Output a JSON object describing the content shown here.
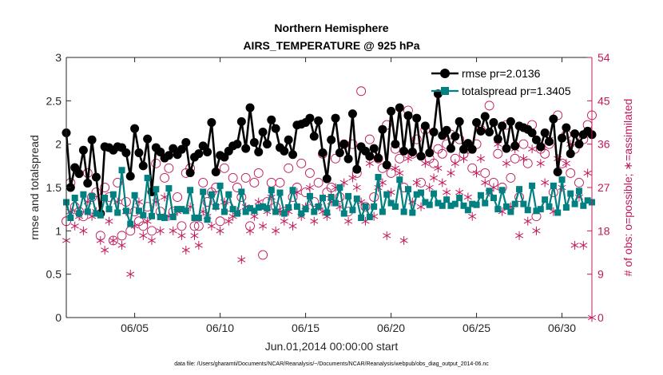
{
  "chart_data": {
    "type": "line",
    "title": "Northern Hemisphere",
    "subtitle": "AIRS_TEMPERATURE @ 925 hPa",
    "xlabel": "Jun.01,2014 00:00:00 start",
    "ylabel_left": "rmse and totalspread",
    "ylabel_right": "# of obs: o=possible; ∗=assimilated",
    "xlim": [
      0,
      30.75
    ],
    "ylim_left": [
      0,
      3
    ],
    "ylim_right": [
      0,
      54
    ],
    "xticks": [
      {
        "v": 4,
        "label": "06/05"
      },
      {
        "v": 9,
        "label": "06/10"
      },
      {
        "v": 14,
        "label": "06/15"
      },
      {
        "v": 19,
        "label": "06/20"
      },
      {
        "v": 24,
        "label": "06/25"
      },
      {
        "v": 29,
        "label": "06/30"
      }
    ],
    "yticks_left": [
      "0",
      "0.5",
      "1",
      "1.5",
      "2",
      "2.5",
      "3"
    ],
    "yticks_right": [
      "0",
      "9",
      "18",
      "27",
      "36",
      "45",
      "54"
    ],
    "grid": false,
    "legend_position": "top-right",
    "footer": "data file: /Users/gharamti/Documents/NCAR/Reanalysis/~/Documents/NCAR/Reanalysis/webpub/obs_diag_output_2014-06.nc",
    "colors": {
      "rmse": "#000000",
      "spread": "#008080",
      "obs": "#c2185b",
      "axis": "#262626"
    },
    "series": [
      {
        "name": "rmse pr=2.0136",
        "axis": "left",
        "x": [
          0.0,
          0.25,
          0.5,
          0.75,
          1.0,
          1.25,
          1.5,
          1.75,
          2.0,
          2.25,
          2.5,
          2.75,
          3.0,
          3.25,
          3.5,
          3.75,
          4.0,
          4.25,
          4.5,
          4.75,
          5.0,
          5.25,
          5.5,
          5.75,
          6.0,
          6.25,
          6.5,
          6.75,
          7.0,
          7.25,
          7.5,
          7.75,
          8.0,
          8.25,
          8.5,
          8.75,
          9.0,
          9.25,
          9.5,
          9.75,
          10.0,
          10.25,
          10.5,
          10.75,
          11.0,
          11.25,
          11.5,
          11.75,
          12.0,
          12.25,
          12.5,
          12.75,
          13.0,
          13.25,
          13.5,
          13.75,
          14.0,
          14.25,
          14.5,
          14.75,
          15.0,
          15.25,
          15.5,
          15.75,
          16.0,
          16.25,
          16.5,
          16.75,
          17.0,
          17.25,
          17.5,
          17.75,
          18.0,
          18.25,
          18.5,
          18.75,
          19.0,
          19.25,
          19.5,
          19.75,
          20.0,
          20.25,
          20.5,
          20.75,
          21.0,
          21.25,
          21.5,
          21.75,
          22.0,
          22.25,
          22.5,
          22.75,
          23.0,
          23.25,
          23.5,
          23.75,
          24.0,
          24.25,
          24.5,
          24.75,
          25.0,
          25.25,
          25.5,
          25.75,
          26.0,
          26.25,
          26.5,
          26.75,
          27.0,
          27.25,
          27.5,
          27.75,
          28.0,
          28.25,
          28.5,
          28.75,
          29.0,
          29.25,
          29.5,
          29.75,
          30.0,
          30.25,
          30.5,
          30.75
        ],
        "values": [
          2.13,
          1.5,
          1.73,
          1.66,
          1.93,
          1.55,
          2.05,
          1.62,
          1.2,
          1.97,
          1.96,
          1.93,
          1.97,
          1.96,
          1.9,
          1.63,
          2.18,
          1.9,
          1.75,
          2.06,
          1.45,
          1.96,
          1.91,
          1.84,
          1.87,
          1.95,
          1.88,
          1.94,
          2.02,
          1.67,
          1.85,
          1.89,
          1.98,
          1.91,
          2.25,
          1.68,
          1.87,
          1.85,
          1.92,
          1.98,
          2.0,
          2.26,
          1.95,
          2.42,
          2.02,
          1.91,
          2.14,
          2.0,
          2.28,
          2.18,
          1.96,
          1.92,
          2.05,
          1.88,
          2.22,
          2.23,
          2.25,
          2.3,
          2.09,
          2.27,
          1.9,
          1.6,
          2.05,
          2.3,
          1.9,
          2.0,
          1.83,
          2.35,
          1.71,
          1.97,
          1.92,
          1.86,
          1.95,
          1.84,
          2.17,
          1.76,
          2.38,
          2.0,
          2.42,
          1.92,
          2.33,
          1.91,
          2.3,
          1.86,
          2.21,
          1.9,
          2.14,
          2.58,
          2.1,
          2.16,
          1.95,
          2.09,
          2.26,
          1.94,
          2.01,
          1.94,
          2.25,
          2.15,
          2.32,
          2.14,
          2.25,
          2.06,
          2.21,
          1.95,
          2.26,
          1.98,
          2.21,
          2.19,
          2.17,
          2.13,
          2.05,
          1.97,
          2.13,
          2.03,
          2.29,
          1.68,
          2.07,
          2.19,
          1.89,
          2.12,
          2.0,
          2.11,
          2.15,
          2.11
        ]
      },
      {
        "name": "totalspread pr=1.3405",
        "axis": "left",
        "x": [
          0.0,
          0.25,
          0.5,
          0.75,
          1.0,
          1.25,
          1.5,
          1.75,
          2.0,
          2.25,
          2.5,
          2.75,
          3.0,
          3.25,
          3.5,
          3.75,
          4.0,
          4.25,
          4.5,
          4.75,
          5.0,
          5.25,
          5.5,
          5.75,
          6.0,
          6.25,
          6.5,
          6.75,
          7.0,
          7.25,
          7.5,
          7.75,
          8.0,
          8.25,
          8.5,
          8.75,
          9.0,
          9.25,
          9.5,
          9.75,
          10.0,
          10.25,
          10.5,
          10.75,
          11.0,
          11.25,
          11.5,
          11.75,
          12.0,
          12.25,
          12.5,
          12.75,
          13.0,
          13.25,
          13.5,
          13.75,
          14.0,
          14.25,
          14.5,
          14.75,
          15.0,
          15.25,
          15.5,
          15.75,
          16.0,
          16.25,
          16.5,
          16.75,
          17.0,
          17.25,
          17.5,
          17.75,
          18.0,
          18.25,
          18.5,
          18.75,
          19.0,
          19.25,
          19.5,
          19.75,
          20.0,
          20.25,
          20.5,
          20.75,
          21.0,
          21.25,
          21.5,
          21.75,
          22.0,
          22.25,
          22.5,
          22.75,
          23.0,
          23.25,
          23.5,
          23.75,
          24.0,
          24.25,
          24.5,
          24.75,
          25.0,
          25.25,
          25.5,
          25.75,
          26.0,
          26.25,
          26.5,
          26.75,
          27.0,
          27.25,
          27.5,
          27.75,
          28.0,
          28.25,
          28.5,
          28.75,
          29.0,
          29.25,
          29.5,
          29.75,
          30.0,
          30.25,
          30.5,
          30.75
        ],
        "values": [
          1.33,
          1.15,
          1.38,
          1.2,
          1.42,
          1.22,
          1.4,
          1.2,
          1.18,
          1.38,
          1.25,
          1.42,
          1.21,
          1.7,
          1.23,
          1.08,
          1.41,
          1.23,
          1.18,
          1.61,
          1.17,
          1.48,
          1.16,
          1.15,
          1.49,
          1.16,
          1.25,
          1.25,
          1.23,
          1.47,
          1.15,
          1.15,
          1.45,
          1.13,
          1.42,
          1.28,
          1.52,
          1.22,
          1.42,
          1.25,
          1.2,
          1.45,
          1.22,
          1.26,
          1.23,
          1.27,
          1.28,
          1.26,
          1.47,
          1.22,
          1.44,
          1.2,
          1.27,
          1.47,
          1.28,
          1.2,
          1.25,
          1.4,
          1.22,
          1.28,
          1.38,
          1.21,
          1.39,
          1.32,
          1.5,
          1.2,
          1.4,
          1.24,
          1.37,
          1.15,
          1.28,
          1.16,
          1.28,
          1.62,
          1.22,
          1.42,
          1.32,
          1.28,
          1.59,
          1.22,
          1.48,
          1.21,
          1.42,
          1.44,
          1.33,
          1.3,
          1.43,
          1.32,
          1.29,
          1.36,
          1.29,
          1.31,
          1.38,
          1.29,
          1.24,
          1.31,
          1.3,
          1.41,
          1.32,
          1.46,
          1.38,
          1.25,
          1.47,
          1.28,
          1.22,
          1.31,
          1.48,
          1.31,
          1.24,
          1.52,
          1.23,
          1.25,
          1.36,
          1.28,
          1.52,
          1.21,
          1.59,
          1.27,
          1.43,
          1.31,
          1.46,
          1.29,
          1.35,
          1.33
        ]
      },
      {
        "name": "possible",
        "axis": "right",
        "marker": "o",
        "x": [
          0.0,
          0.25,
          0.5,
          0.75,
          1.0,
          1.25,
          1.5,
          1.75,
          2.0,
          2.25,
          2.5,
          2.75,
          3.0,
          3.25,
          3.5,
          3.75,
          4.0,
          4.25,
          4.5,
          4.75,
          5.0,
          5.25,
          5.5,
          5.75,
          6.0,
          6.25,
          6.5,
          6.75,
          7.0,
          7.25,
          7.5,
          7.75,
          8.0,
          8.25,
          8.5,
          8.75,
          9.0,
          9.25,
          9.5,
          9.75,
          10.0,
          10.25,
          10.5,
          10.75,
          11.0,
          11.25,
          11.5,
          11.75,
          12.0,
          12.25,
          12.5,
          12.75,
          13.0,
          13.25,
          13.5,
          13.75,
          14.0,
          14.25,
          14.5,
          14.75,
          15.0,
          15.25,
          15.5,
          15.75,
          16.0,
          16.25,
          16.5,
          16.75,
          17.0,
          17.25,
          17.5,
          17.75,
          18.0,
          18.25,
          18.5,
          18.75,
          19.0,
          19.25,
          19.5,
          19.75,
          20.0,
          20.25,
          20.5,
          20.75,
          21.0,
          21.25,
          21.5,
          21.75,
          22.0,
          22.25,
          22.5,
          22.75,
          23.0,
          23.25,
          23.5,
          23.75,
          24.0,
          24.25,
          24.5,
          24.75,
          25.0,
          25.25,
          25.5,
          25.75,
          26.0,
          26.25,
          26.5,
          26.75,
          27.0,
          27.25,
          27.5,
          27.75,
          28.0,
          28.25,
          28.5,
          28.75,
          29.0,
          29.25,
          29.5,
          29.75,
          30.0,
          30.25,
          30.5,
          30.75
        ],
        "values": [
          20,
          28,
          23,
          22,
          21,
          30,
          25,
          26,
          17,
          27,
          25,
          16,
          28,
          17,
          24,
          18,
          22,
          20,
          19,
          23,
          18,
          32,
          22,
          29,
          31,
          22,
          25,
          19,
          30,
          31,
          19,
          19,
          28,
          24,
          26,
          27,
          20,
          31,
          23,
          29,
          27,
          25,
          29,
          19,
          28,
          30,
          13,
          24,
          28,
          23,
          28,
          22,
          31,
          25,
          27,
          32,
          26,
          30,
          24,
          28,
          34,
          26,
          27,
          33,
          25,
          36,
          22,
          36,
          30,
          47,
          23,
          37,
          25,
          33,
          31,
          40,
          30,
          35,
          33,
          27,
          43,
          34,
          37,
          28,
          39,
          33,
          32,
          35,
          34,
          36,
          38,
          33,
          37,
          34,
          35,
          31,
          36,
          39,
          30,
          44,
          28,
          34,
          27,
          40,
          29,
          33,
          25,
          36,
          32,
          40,
          21,
          35,
          34,
          36,
          26,
          42,
          32,
          38,
          30,
          35,
          28,
          37,
          40,
          42
        ]
      },
      {
        "name": "assimilated",
        "axis": "right",
        "marker": "*",
        "x": [
          0.0,
          0.25,
          0.5,
          0.75,
          1.0,
          1.25,
          1.5,
          1.75,
          2.0,
          2.25,
          2.5,
          2.75,
          3.0,
          3.25,
          3.5,
          3.75,
          4.0,
          4.25,
          4.5,
          4.75,
          5.0,
          5.25,
          5.5,
          5.75,
          6.0,
          6.25,
          6.5,
          6.75,
          7.0,
          7.25,
          7.5,
          7.75,
          8.0,
          8.25,
          8.5,
          8.75,
          9.0,
          9.25,
          9.5,
          9.75,
          10.0,
          10.25,
          10.5,
          10.75,
          11.0,
          11.25,
          11.5,
          11.75,
          12.0,
          12.25,
          12.5,
          12.75,
          13.0,
          13.25,
          13.5,
          13.75,
          14.0,
          14.25,
          14.5,
          14.75,
          15.0,
          15.25,
          15.5,
          15.75,
          16.0,
          16.25,
          16.5,
          16.75,
          17.0,
          17.25,
          17.5,
          17.75,
          18.0,
          18.25,
          18.5,
          18.75,
          19.0,
          19.25,
          19.5,
          19.75,
          20.0,
          20.25,
          20.5,
          20.75,
          21.0,
          21.25,
          21.5,
          21.75,
          22.0,
          22.25,
          22.5,
          22.75,
          23.0,
          23.25,
          23.5,
          23.75,
          24.0,
          24.25,
          24.5,
          24.75,
          25.0,
          25.25,
          25.5,
          25.75,
          26.0,
          26.25,
          26.5,
          26.75,
          27.0,
          27.25,
          27.5,
          27.75,
          28.0,
          28.25,
          28.5,
          28.75,
          29.0,
          29.25,
          29.5,
          29.75,
          30.0,
          30.25,
          30.5,
          30.75
        ],
        "values": [
          16,
          22,
          19,
          21,
          18,
          24,
          21,
          22,
          16,
          14,
          20,
          16,
          24,
          15,
          22,
          9,
          19,
          24,
          17,
          20,
          16,
          24,
          18,
          25,
          21,
          18,
          22,
          17,
          14,
          23,
          17,
          15,
          22,
          21,
          19,
          23,
          18,
          24,
          20,
          21,
          22,
          12,
          23,
          18,
          21,
          24,
          19,
          22,
          25,
          18,
          22,
          20,
          22,
          19,
          26,
          21,
          23,
          27,
          20,
          23,
          22,
          21,
          24,
          27,
          23,
          28,
          20,
          29,
          27,
          24,
          20,
          32,
          21,
          27,
          28,
          17,
          26,
          31,
          30,
          16,
          33,
          24,
          28,
          23,
          32,
          27,
          29,
          31,
          28,
          26,
          30,
          32,
          26,
          33,
          25,
          21,
          30,
          33,
          28,
          26,
          27,
          36,
          22,
          32,
          23,
          35,
          17,
          33,
          20,
          35,
          18,
          32,
          28,
          37,
          22,
          33,
          27,
          32,
          36,
          15,
          25,
          15,
          30,
          0
        ]
      }
    ]
  }
}
